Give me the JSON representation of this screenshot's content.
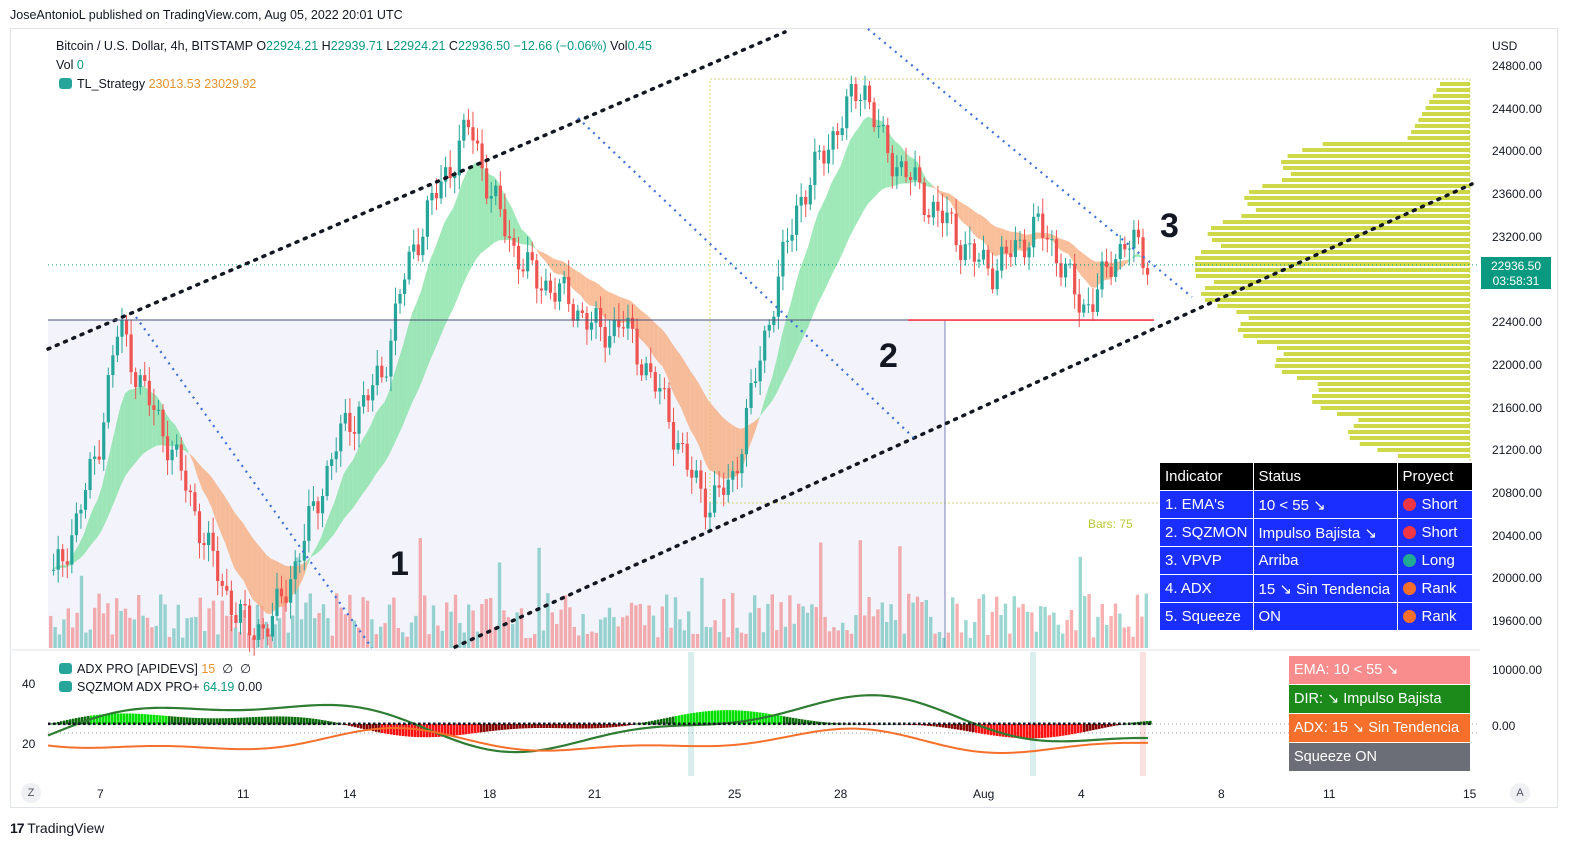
{
  "published_line": "JoseAntonioL published on TradingView.com, Aug 05, 2022 20:01 UTC",
  "brand": "TradingView",
  "legend": {
    "symbol": "Bitcoin / U.S. Dollar, 4h, BITSTAMP",
    "o_label": "O",
    "o": "22924.21",
    "h_label": "H",
    "h": "22939.71",
    "l_label": "L",
    "l": "22924.21",
    "c_label": "C",
    "c": "22936.50",
    "change": "−12.66 (−0.06%)",
    "vol_label": "Vol",
    "vol": "0.45",
    "vol2_label": "Vol",
    "vol2": "0",
    "tl_name": "TL_Strategy",
    "tl_v1": "23013.53",
    "tl_v2": "23029.92",
    "adx_name": "ADX PRO [APIDEVS]",
    "adx_v1": "15",
    "adx_v2": "∅",
    "adx_v3": "∅",
    "sqz_name": "SQZMOM ADX PRO+",
    "sqz_v1": "64.19",
    "sqz_v2": "0.00"
  },
  "price_axis": {
    "currency": "USD",
    "ticks": [
      "24800.00",
      "24400.00",
      "24000.00",
      "23600.00",
      "23200.00",
      "22400.00",
      "22000.00",
      "21600.00",
      "21200.00",
      "20800.00",
      "20400.00",
      "20000.00",
      "19600.00"
    ],
    "last_price": "22936.50",
    "countdown": "03:58:31"
  },
  "osc_axis": {
    "left_ticks": [
      "40",
      "20"
    ],
    "right_ticks": [
      "10000.00",
      "0.00"
    ]
  },
  "time_axis": {
    "labels": [
      "7",
      "11",
      "14",
      "18",
      "21",
      "25",
      "28",
      "Aug",
      "4",
      "8",
      "11",
      "15"
    ],
    "z_button": "Z",
    "a_button": "A"
  },
  "annotations": [
    "1",
    "2",
    "3"
  ],
  "bars_label": "Bars: 75",
  "indicator_table": {
    "headers": [
      "Indicator",
      "Status",
      "Proyect"
    ],
    "rows": [
      {
        "indicator": "1. EMA's",
        "status": "10 < 55 ↘",
        "proyect": "Short",
        "dot": "#f23645"
      },
      {
        "indicator": "2. SQZMON",
        "status": "Impulso Bajista ↘",
        "proyect": "Short",
        "dot": "#f23645"
      },
      {
        "indicator": "3. VPVP",
        "status": "Arriba",
        "proyect": "Long",
        "dot": "#22ab94"
      },
      {
        "indicator": "4. ADX",
        "status": "15 ↘ Sin Tendencia",
        "proyect": "Rank",
        "dot": "#f7702b"
      },
      {
        "indicator": "5. Squeeze",
        "status": "ON",
        "proyect": "Rank",
        "dot": "#f7702b"
      }
    ]
  },
  "signals": [
    {
      "text": "EMA: 10 < 55 ↘",
      "color": "#f98c8c"
    },
    {
      "text": "DIR: ↘ Impulso Bajista",
      "color": "#1b8a1b"
    },
    {
      "text": "ADX: 15 ↘ Sin Tendencia",
      "color": "#f7702b"
    },
    {
      "text": "Squeeze ON",
      "color": "#6b6e76"
    }
  ],
  "colors": {
    "up": "#26a69a",
    "down": "#ef5350",
    "last_price": "#089981"
  },
  "chart_data": {
    "type": "candlestick",
    "symbol": "BTCUSD",
    "timeframe": "4h",
    "ylim": [
      19400,
      24900
    ],
    "x_axis_labels": [
      "7",
      "11",
      "14",
      "18",
      "21",
      "25",
      "28",
      "Aug",
      "4",
      "8",
      "11",
      "15"
    ],
    "close_approx": [
      20000,
      20500,
      21200,
      22400,
      21800,
      21400,
      20900,
      20300,
      19800,
      19500,
      19600,
      20100,
      20700,
      21300,
      21600,
      21900,
      22800,
      23400,
      23800,
      24250,
      23600,
      23100,
      22800,
      22700,
      22500,
      22300,
      22400,
      22000,
      21600,
      21000,
      20700,
      20900,
      21800,
      22700,
      23500,
      23900,
      24300,
      24650,
      24000,
      23800,
      23500,
      23300,
      23000,
      22900,
      23100,
      23300,
      23000,
      22500,
      22800,
      23200,
      22950
    ],
    "horizontal_level": 22420,
    "last_price": 22936.5
  }
}
